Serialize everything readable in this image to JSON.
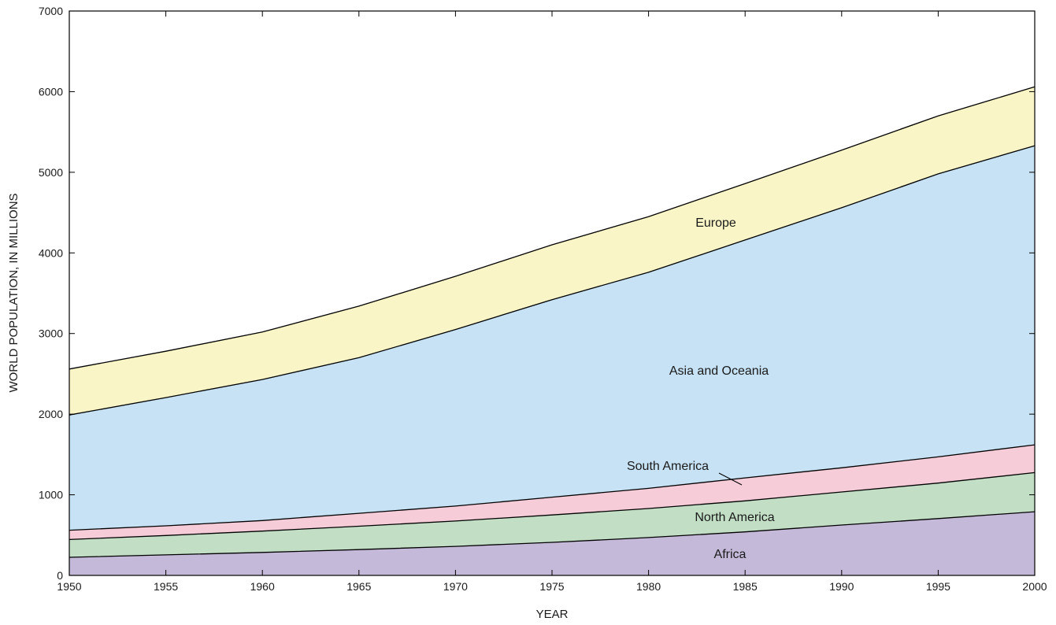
{
  "chart_data": {
    "type": "area",
    "stacked": true,
    "xlabel": "YEAR",
    "ylabel": "WORLD POPULATION, IN MILLIONS",
    "xlim": [
      1950,
      2000
    ],
    "ylim": [
      0,
      7000
    ],
    "x": [
      1950,
      1955,
      1960,
      1965,
      1970,
      1975,
      1980,
      1985,
      1990,
      1995,
      2000
    ],
    "xticks": [
      "1950",
      "1955",
      "1960",
      "1965",
      "1970",
      "1975",
      "1980",
      "1985",
      "1990",
      "1995",
      "2000"
    ],
    "yticks": [
      "0",
      "1000",
      "2000",
      "3000",
      "4000",
      "5000",
      "6000",
      "7000"
    ],
    "grid": false,
    "legend": "none (series labeled directly on chart)",
    "series": [
      {
        "name": "Africa",
        "color": "#c5b9d9",
        "values": [
          225,
          255,
          285,
          320,
          360,
          410,
          470,
          540,
          625,
          705,
          790
        ]
      },
      {
        "name": "North America",
        "color": "#c2dfc6",
        "values": [
          220,
          240,
          265,
          290,
          315,
          340,
          360,
          385,
          410,
          440,
          485
        ]
      },
      {
        "name": "South America",
        "color": "#f5ccd8",
        "values": [
          115,
          120,
          130,
          160,
          185,
          220,
          250,
          285,
          300,
          325,
          345
        ]
      },
      {
        "name": "Asia and Oceania",
        "color": "#c6e2f4",
        "values": [
          1430,
          1590,
          1750,
          1930,
          2190,
          2450,
          2680,
          2950,
          3225,
          3510,
          3710
        ]
      },
      {
        "name": "Europe",
        "color": "#f9f5c6",
        "values": [
          570,
          575,
          590,
          640,
          660,
          680,
          690,
          700,
          715,
          720,
          730
        ]
      }
    ]
  }
}
